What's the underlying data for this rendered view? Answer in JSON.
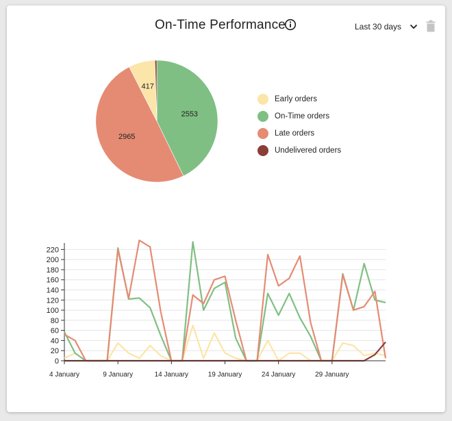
{
  "header": {
    "title": "On-Time Performance",
    "range_label": "Last 30 days",
    "info_icon": "info-icon",
    "chevron_icon": "chevron-down-icon",
    "delete_icon": "trash-icon"
  },
  "colors": {
    "early": "#fbe5a8",
    "ontime": "#7fbf83",
    "late": "#e58b73",
    "undelivered": "#8b3d36",
    "grid": "#e4e4e4"
  },
  "chart_data": [
    {
      "type": "pie",
      "slices": [
        {
          "key": "ontime",
          "label": "On-Time orders",
          "value": 2553,
          "value_label": "2553"
        },
        {
          "key": "late",
          "label": "Late orders",
          "value": 2965,
          "value_label": "2965"
        },
        {
          "key": "early",
          "label": "Early orders",
          "value": 417,
          "value_label": "417"
        },
        {
          "key": "undelivered",
          "label": "Undelivered orders",
          "value": 30,
          "value_label": ""
        }
      ],
      "legend": [
        {
          "key": "early",
          "label": "Early orders"
        },
        {
          "key": "ontime",
          "label": "On-Time orders"
        },
        {
          "key": "late",
          "label": "Late orders"
        },
        {
          "key": "undelivered",
          "label": "Undelivered orders"
        }
      ],
      "legend_position": "right"
    },
    {
      "type": "line",
      "ylim": [
        0,
        230
      ],
      "y_ticks": [
        0,
        20,
        40,
        60,
        80,
        100,
        120,
        140,
        160,
        180,
        200,
        220
      ],
      "x_ticks": [
        {
          "day": 4,
          "label": "4 January"
        },
        {
          "day": 9,
          "label": "9 January"
        },
        {
          "day": 14,
          "label": "14 January"
        },
        {
          "day": 19,
          "label": "19 January"
        },
        {
          "day": 24,
          "label": "24 January"
        },
        {
          "day": 29,
          "label": "29 January"
        }
      ],
      "x": [
        4,
        5,
        6,
        7,
        8,
        9,
        10,
        11,
        12,
        13,
        14,
        15,
        16,
        17,
        18,
        19,
        20,
        21,
        22,
        23,
        24,
        25,
        26,
        27,
        28,
        29,
        30,
        31,
        32,
        33,
        34
      ],
      "grid": true,
      "series": [
        {
          "key": "early",
          "values": [
            5,
            15,
            0,
            0,
            0,
            35,
            15,
            5,
            30,
            10,
            0,
            0,
            70,
            5,
            55,
            15,
            5,
            0,
            0,
            40,
            0,
            15,
            15,
            0,
            0,
            0,
            35,
            30,
            10,
            15,
            10
          ]
        },
        {
          "key": "ontime",
          "values": [
            57,
            15,
            0,
            0,
            0,
            223,
            122,
            124,
            105,
            50,
            0,
            0,
            235,
            100,
            143,
            155,
            45,
            0,
            0,
            133,
            90,
            133,
            85,
            48,
            0,
            0,
            172,
            100,
            192,
            120,
            115
          ]
        },
        {
          "key": "late",
          "values": [
            52,
            40,
            0,
            0,
            0,
            220,
            123,
            238,
            225,
            97,
            0,
            0,
            130,
            113,
            160,
            167,
            80,
            0,
            0,
            210,
            148,
            163,
            207,
            75,
            0,
            0,
            170,
            100,
            107,
            137,
            5
          ]
        },
        {
          "key": "undelivered",
          "values": [
            0,
            0,
            0,
            0,
            0,
            0,
            0,
            0,
            0,
            0,
            0,
            0,
            0,
            0,
            0,
            0,
            0,
            0,
            0,
            0,
            0,
            0,
            0,
            0,
            0,
            0,
            0,
            0,
            0,
            12,
            37
          ]
        }
      ]
    }
  ]
}
